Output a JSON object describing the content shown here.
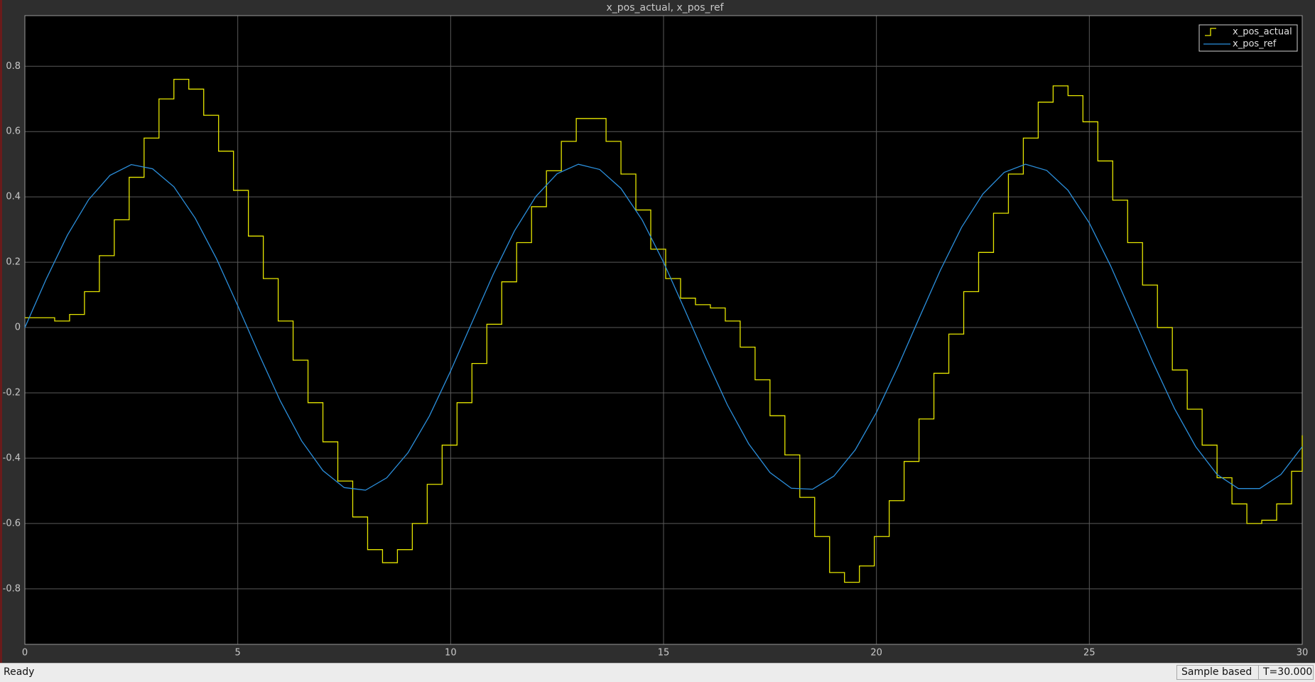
{
  "chart_data": {
    "type": "line",
    "title": "x_pos_actual, x_pos_ref",
    "xlim": [
      0,
      30
    ],
    "ylim": [
      -0.97,
      0.955
    ],
    "xticks": [
      0,
      5,
      10,
      15,
      20,
      25,
      30
    ],
    "yticks": [
      -0.8,
      -0.6,
      -0.4,
      -0.2,
      0,
      0.2,
      0.4,
      0.6,
      0.8
    ],
    "grid": true,
    "legend": "upper right",
    "series": [
      {
        "name": "x_pos_actual",
        "color": "#e6e600",
        "step": true,
        "x": [
          0,
          0.35,
          0.7,
          1.05,
          1.4,
          1.75,
          2.1,
          2.45,
          2.8,
          3.15,
          3.5,
          3.85,
          4.2,
          4.55,
          4.9,
          5.25,
          5.6,
          5.95,
          6.3,
          6.65,
          7,
          7.35,
          7.7,
          8.05,
          8.4,
          8.75,
          9.1,
          9.45,
          9.8,
          10.15,
          10.5,
          10.85,
          11.2,
          11.55,
          11.9,
          12.25,
          12.6,
          12.95,
          13.3,
          13.65,
          14,
          14.35,
          14.7,
          15.05,
          15.4,
          15.75,
          16.1,
          16.45,
          16.8,
          17.15,
          17.5,
          17.85,
          18.2,
          18.55,
          18.9,
          19.25,
          19.6,
          19.95,
          20.3,
          20.65,
          21,
          21.35,
          21.7,
          22.05,
          22.4,
          22.75,
          23.1,
          23.45,
          23.8,
          24.15,
          24.5,
          24.85,
          25.2,
          25.55,
          25.9,
          26.25,
          26.6,
          26.95,
          27.3,
          27.65,
          28,
          28.35,
          28.7,
          29.05,
          29.4,
          29.75,
          30
        ],
        "values": [
          0.03,
          0.03,
          0.02,
          0.04,
          0.11,
          0.22,
          0.33,
          0.46,
          0.58,
          0.7,
          0.76,
          0.73,
          0.65,
          0.54,
          0.42,
          0.28,
          0.15,
          0.02,
          -0.1,
          -0.23,
          -0.35,
          -0.47,
          -0.58,
          -0.68,
          -0.72,
          -0.68,
          -0.6,
          -0.48,
          -0.36,
          -0.23,
          -0.11,
          0.01,
          0.14,
          0.26,
          0.37,
          0.48,
          0.57,
          0.64,
          0.64,
          0.57,
          0.47,
          0.36,
          0.24,
          0.15,
          0.09,
          0.07,
          0.06,
          0.02,
          -0.06,
          -0.16,
          -0.27,
          -0.39,
          -0.52,
          -0.64,
          -0.75,
          -0.78,
          -0.73,
          -0.64,
          -0.53,
          -0.41,
          -0.28,
          -0.14,
          -0.02,
          0.11,
          0.23,
          0.35,
          0.47,
          0.58,
          0.69,
          0.74,
          0.71,
          0.63,
          0.51,
          0.39,
          0.26,
          0.13,
          0.0,
          -0.13,
          -0.25,
          -0.36,
          -0.46,
          -0.54,
          -0.6,
          -0.59,
          -0.54,
          -0.44,
          -0.33
        ]
      },
      {
        "name": "x_pos_ref",
        "color": "#2b8fdc",
        "step": false,
        "x": [
          0,
          0.5,
          1,
          1.5,
          2,
          2.5,
          3,
          3.5,
          4,
          4.5,
          5,
          5.5,
          6,
          6.5,
          7,
          7.5,
          8,
          8.5,
          9,
          9.5,
          10,
          10.5,
          11,
          11.5,
          12,
          12.5,
          13,
          13.5,
          14,
          14.5,
          15,
          15.5,
          16,
          16.5,
          17,
          17.5,
          18,
          18.5,
          19,
          19.5,
          20,
          20.5,
          21,
          21.5,
          22,
          22.5,
          23,
          23.5,
          24,
          24.5,
          25,
          25.5,
          26,
          26.5,
          27,
          27.5,
          28,
          28.5,
          29,
          29.5,
          30
        ],
        "values": [
          0,
          0.148,
          0.283,
          0.392,
          0.466,
          0.499,
          0.486,
          0.431,
          0.335,
          0.211,
          0.067,
          -0.082,
          -0.225,
          -0.347,
          -0.438,
          -0.49,
          -0.498,
          -0.46,
          -0.383,
          -0.271,
          -0.133,
          0.015,
          0.163,
          0.296,
          0.401,
          0.471,
          0.5,
          0.484,
          0.426,
          0.329,
          0.2,
          0.054,
          -0.095,
          -0.237,
          -0.356,
          -0.444,
          -0.492,
          -0.495,
          -0.455,
          -0.375,
          -0.26,
          -0.121,
          0.028,
          0.175,
          0.307,
          0.409,
          0.475,
          0.5,
          0.481,
          0.42,
          0.32,
          0.189,
          0.041,
          -0.108,
          -0.248,
          -0.365,
          -0.45,
          -0.493,
          -0.493,
          -0.45,
          -0.365
        ]
      }
    ]
  },
  "status": {
    "state": "Ready",
    "mode": "Sample based",
    "time": "T=30.000"
  }
}
